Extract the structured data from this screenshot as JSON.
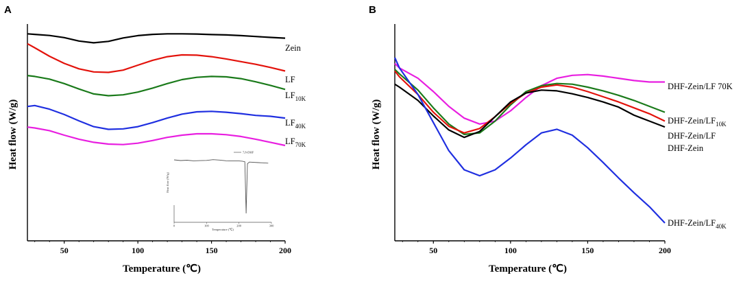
{
  "chart_data": [
    {
      "panel": "A",
      "type": "line",
      "xlabel": "Temperature (℃)",
      "ylabel": "Heat flow (W/g)",
      "xlim": [
        25,
        200
      ],
      "xticks": [
        50,
        100,
        150,
        200
      ],
      "yticks_shown": false,
      "series": [
        {
          "name": "Zein",
          "label_main": "Zein",
          "label_sub": "",
          "color": "#000000",
          "points": [
            [
              25,
              -1.0
            ],
            [
              30,
              -1.6
            ],
            [
              40,
              -2.8
            ],
            [
              50,
              -5.2
            ],
            [
              60,
              -9.0
            ],
            [
              70,
              -11.0
            ],
            [
              80,
              -9.4
            ],
            [
              90,
              -5.6
            ],
            [
              100,
              -3.0
            ],
            [
              110,
              -1.6
            ],
            [
              120,
              -1.0
            ],
            [
              130,
              -1.0
            ],
            [
              140,
              -1.2
            ],
            [
              150,
              -1.8
            ],
            [
              160,
              -2.2
            ],
            [
              170,
              -3.0
            ],
            [
              180,
              -4.0
            ],
            [
              190,
              -5.0
            ],
            [
              200,
              -5.8
            ]
          ]
        },
        {
          "name": "LF",
          "label_main": "LF",
          "label_sub": "",
          "color": "#e3120b",
          "points": [
            [
              25,
              -12.0
            ],
            [
              30,
              -16.5
            ],
            [
              40,
              -26.0
            ],
            [
              50,
              -34.0
            ],
            [
              60,
              -40.0
            ],
            [
              70,
              -43.5
            ],
            [
              80,
              -44.0
            ],
            [
              90,
              -41.5
            ],
            [
              100,
              -36.0
            ],
            [
              110,
              -30.5
            ],
            [
              120,
              -26.5
            ],
            [
              130,
              -24.5
            ],
            [
              140,
              -24.8
            ],
            [
              150,
              -26.5
            ],
            [
              160,
              -29.0
            ],
            [
              170,
              -32.0
            ],
            [
              180,
              -35.0
            ],
            [
              190,
              -38.5
            ],
            [
              200,
              -42.5
            ]
          ]
        },
        {
          "name": "LF10K",
          "label_main": "LF",
          "label_sub": "10K",
          "color": "#1a7a1a",
          "points": [
            [
              25,
              -47.5
            ],
            [
              30,
              -48.5
            ],
            [
              40,
              -51.5
            ],
            [
              50,
              -56.5
            ],
            [
              60,
              -62.5
            ],
            [
              70,
              -68.0
            ],
            [
              80,
              -70.0
            ],
            [
              90,
              -69.0
            ],
            [
              100,
              -66.0
            ],
            [
              110,
              -61.5
            ],
            [
              120,
              -56.5
            ],
            [
              130,
              -52.0
            ],
            [
              140,
              -49.5
            ],
            [
              150,
              -48.5
            ],
            [
              160,
              -49.0
            ],
            [
              170,
              -51.0
            ],
            [
              180,
              -54.5
            ],
            [
              190,
              -58.5
            ],
            [
              200,
              -63.0
            ]
          ]
        },
        {
          "name": "LF40K",
          "label_main": "LF",
          "label_sub": "40K",
          "color": "#1f2fe0",
          "points": [
            [
              25,
              -82.0
            ],
            [
              30,
              -81.0
            ],
            [
              40,
              -85.0
            ],
            [
              50,
              -91.0
            ],
            [
              60,
              -98.0
            ],
            [
              70,
              -104.5
            ],
            [
              80,
              -107.5
            ],
            [
              90,
              -107.0
            ],
            [
              100,
              -104.5
            ],
            [
              110,
              -100.0
            ],
            [
              120,
              -95.0
            ],
            [
              130,
              -90.5
            ],
            [
              140,
              -88.0
            ],
            [
              150,
              -87.5
            ],
            [
              160,
              -88.5
            ],
            [
              170,
              -90.0
            ],
            [
              180,
              -92.0
            ],
            [
              190,
              -93.0
            ],
            [
              200,
              -95.0
            ]
          ]
        },
        {
          "name": "LF70K",
          "label_main": "LF",
          "label_sub": "70K",
          "color": "#e81ee0",
          "points": [
            [
              25,
              -105.0
            ],
            [
              30,
              -106.0
            ],
            [
              40,
              -109.0
            ],
            [
              50,
              -114.0
            ],
            [
              60,
              -118.5
            ],
            [
              70,
              -122.0
            ],
            [
              80,
              -124.0
            ],
            [
              90,
              -124.5
            ],
            [
              100,
              -123.0
            ],
            [
              110,
              -120.0
            ],
            [
              120,
              -116.5
            ],
            [
              130,
              -114.0
            ],
            [
              140,
              -112.5
            ],
            [
              150,
              -112.5
            ],
            [
              160,
              -113.5
            ],
            [
              170,
              -115.5
            ],
            [
              180,
              -118.5
            ],
            [
              190,
              -122.0
            ],
            [
              200,
              -125.5
            ]
          ]
        }
      ],
      "inset": {
        "legend": "7,8-DHF",
        "xlabel": "Temperature (℃)",
        "ylabel": "Heat flow (W/g)",
        "xticks": [
          "0",
          "100",
          "200",
          "300"
        ],
        "color": "#555555",
        "points": [
          [
            0,
            -1.0
          ],
          [
            20,
            -1.6
          ],
          [
            40,
            -1.3
          ],
          [
            60,
            -1.9
          ],
          [
            80,
            -1.7
          ],
          [
            100,
            -1.5
          ],
          [
            120,
            -0.8
          ],
          [
            140,
            -1.2
          ],
          [
            160,
            -1.8
          ],
          [
            180,
            -2.0
          ],
          [
            200,
            -2.0
          ],
          [
            210,
            -2.2
          ],
          [
            218,
            -2.7
          ],
          [
            222,
            -50.0
          ],
          [
            226,
            -4.5
          ],
          [
            232,
            -3.0
          ],
          [
            260,
            -3.5
          ],
          [
            290,
            -4.0
          ]
        ]
      }
    },
    {
      "panel": "B",
      "type": "line",
      "xlabel": "Temperature (℃)",
      "ylabel": "Heat flow (W/g)",
      "xlim": [
        25,
        200
      ],
      "xticks": [
        50,
        100,
        150,
        200
      ],
      "yticks_shown": false,
      "series": [
        {
          "name": "DHF-Zein/LF 70K",
          "label_main": "DHF-Zein/LF 70K",
          "label_sub": "",
          "color": "#e81ee0",
          "points": [
            [
              25,
              -30.0
            ],
            [
              28,
              -36.0
            ],
            [
              40,
              -50.0
            ],
            [
              50,
              -68.0
            ],
            [
              60,
              -88.0
            ],
            [
              70,
              -104.0
            ],
            [
              80,
              -112.0
            ],
            [
              90,
              -108.0
            ],
            [
              100,
              -94.0
            ],
            [
              110,
              -76.0
            ],
            [
              120,
              -60.0
            ],
            [
              130,
              -50.0
            ],
            [
              140,
              -46.0
            ],
            [
              150,
              -45.0
            ],
            [
              160,
              -47.0
            ],
            [
              170,
              -50.0
            ],
            [
              180,
              -53.0
            ],
            [
              190,
              -55.0
            ],
            [
              200,
              -55.0
            ]
          ]
        },
        {
          "name": "DHF-Zein/LF10K",
          "label_main": "DHF-Zein/LF",
          "label_sub": "10K",
          "color": "#1a7a1a",
          "points": [
            [
              25,
              -38.0
            ],
            [
              28,
              -44.0
            ],
            [
              40,
              -66.0
            ],
            [
              50,
              -90.0
            ],
            [
              60,
              -112.0
            ],
            [
              70,
              -126.0
            ],
            [
              80,
              -124.0
            ],
            [
              90,
              -108.0
            ],
            [
              100,
              -86.0
            ],
            [
              110,
              -68.0
            ],
            [
              120,
              -60.0
            ],
            [
              130,
              -57.0
            ],
            [
              140,
              -58.0
            ],
            [
              150,
              -62.0
            ],
            [
              160,
              -67.0
            ],
            [
              170,
              -73.0
            ],
            [
              180,
              -80.0
            ],
            [
              190,
              -88.0
            ],
            [
              200,
              -96.0
            ]
          ]
        },
        {
          "name": "DHF-Zein/LF",
          "label_main": "DHF-Zein/LF",
          "label_sub": "",
          "color": "#e3120b",
          "points": [
            [
              25,
              -40.0
            ],
            [
              28,
              -48.0
            ],
            [
              40,
              -72.0
            ],
            [
              50,
              -96.0
            ],
            [
              60,
              -115.0
            ],
            [
              70,
              -124.0
            ],
            [
              80,
              -118.0
            ],
            [
              90,
              -102.0
            ],
            [
              100,
              -84.0
            ],
            [
              110,
              -70.0
            ],
            [
              120,
              -62.0
            ],
            [
              130,
              -59.0
            ],
            [
              140,
              -62.0
            ],
            [
              150,
              -68.0
            ],
            [
              160,
              -75.0
            ],
            [
              170,
              -82.0
            ],
            [
              180,
              -90.0
            ],
            [
              190,
              -98.0
            ],
            [
              200,
              -108.0
            ]
          ]
        },
        {
          "name": "DHF-Zein",
          "label_main": "DHF-Zein",
          "label_sub": "",
          "color": "#000000",
          "points": [
            [
              25,
              -58.0
            ],
            [
              28,
              -62.0
            ],
            [
              40,
              -80.0
            ],
            [
              50,
              -101.0
            ],
            [
              60,
              -120.0
            ],
            [
              70,
              -130.0
            ],
            [
              80,
              -122.0
            ],
            [
              90,
              -102.0
            ],
            [
              100,
              -82.0
            ],
            [
              110,
              -70.0
            ],
            [
              120,
              -66.0
            ],
            [
              130,
              -67.0
            ],
            [
              140,
              -71.0
            ],
            [
              150,
              -76.0
            ],
            [
              160,
              -82.0
            ],
            [
              170,
              -89.0
            ],
            [
              180,
              -100.0
            ],
            [
              185,
              -104.0
            ],
            [
              190,
              -108.0
            ],
            [
              200,
              -116.0
            ]
          ]
        },
        {
          "name": "DHF-Zein/LF40K",
          "label_main": "DHF-Zein/LF",
          "label_sub": "40K",
          "color": "#1f2fe0",
          "points": [
            [
              25,
              -22.0
            ],
            [
              28,
              -36.0
            ],
            [
              40,
              -72.0
            ],
            [
              50,
              -110.0
            ],
            [
              60,
              -148.0
            ],
            [
              70,
              -174.0
            ],
            [
              80,
              -182.0
            ],
            [
              90,
              -174.0
            ],
            [
              100,
              -158.0
            ],
            [
              110,
              -140.0
            ],
            [
              120,
              -124.0
            ],
            [
              130,
              -119.0
            ],
            [
              140,
              -127.0
            ],
            [
              150,
              -144.0
            ],
            [
              160,
              -164.0
            ],
            [
              170,
              -185.0
            ],
            [
              180,
              -205.0
            ],
            [
              190,
              -224.0
            ],
            [
              200,
              -246.0
            ]
          ]
        }
      ]
    }
  ]
}
